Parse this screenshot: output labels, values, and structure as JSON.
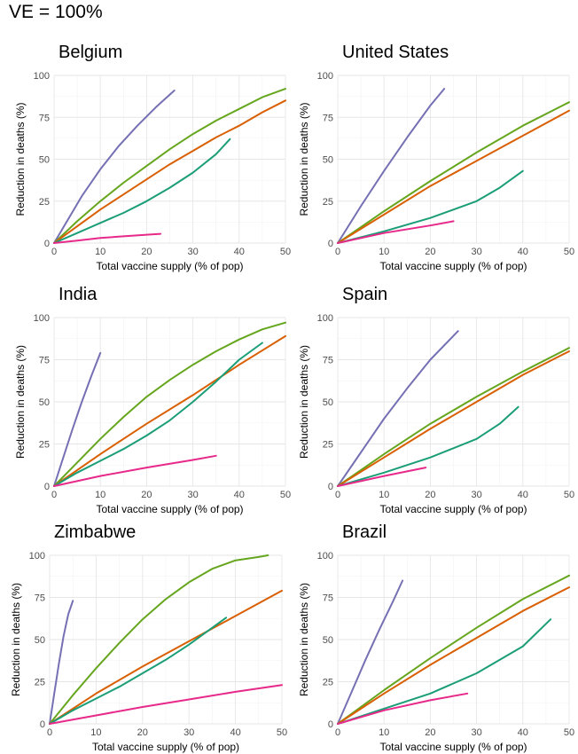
{
  "title": "VE = 100%",
  "colors": {
    "purple": "#7570b3",
    "green": "#66a61e",
    "orange": "#d95f02",
    "teal": "#1b9e77",
    "pink": "#e7298a"
  },
  "chart_data": [
    {
      "type": "line",
      "title": "Belgium",
      "xlabel": "Total vaccine supply (% of pop)",
      "ylabel": "Reduction in deaths (%)",
      "xlim": [
        0,
        50
      ],
      "ylim": [
        0,
        100
      ],
      "xticks": [
        0,
        10,
        20,
        30,
        40,
        50
      ],
      "yticks": [
        0,
        25,
        50,
        75,
        100
      ],
      "series": [
        {
          "color": "purple",
          "x": [
            0,
            3,
            6,
            10,
            14,
            18,
            22,
            26
          ],
          "y": [
            0,
            14,
            28,
            44,
            58,
            70,
            81,
            91
          ]
        },
        {
          "color": "green",
          "x": [
            0,
            5,
            10,
            15,
            20,
            25,
            30,
            35,
            40,
            45,
            50
          ],
          "y": [
            0,
            13,
            25,
            36,
            46,
            56,
            65,
            73,
            80,
            87,
            92
          ]
        },
        {
          "color": "orange",
          "x": [
            0,
            5,
            10,
            15,
            20,
            25,
            30,
            35,
            40,
            45,
            50
          ],
          "y": [
            0,
            10,
            20,
            29,
            38,
            47,
            55,
            63,
            70,
            78,
            85
          ]
        },
        {
          "color": "teal",
          "x": [
            0,
            5,
            10,
            15,
            20,
            25,
            30,
            35,
            38
          ],
          "y": [
            0,
            6,
            12,
            18,
            25,
            33,
            42,
            53,
            62
          ]
        },
        {
          "color": "pink",
          "x": [
            0,
            5,
            10,
            15,
            20,
            23
          ],
          "y": [
            0,
            1.5,
            3,
            4,
            5,
            5.5
          ]
        }
      ]
    },
    {
      "type": "line",
      "title": "United States",
      "xlabel": "Total vaccine supply (% of pop)",
      "ylabel": "Reduction in deaths (%)",
      "xlim": [
        0,
        50
      ],
      "ylim": [
        0,
        100
      ],
      "xticks": [
        0,
        10,
        20,
        30,
        40,
        50
      ],
      "yticks": [
        0,
        25,
        50,
        75,
        100
      ],
      "series": [
        {
          "color": "purple",
          "x": [
            0,
            5,
            10,
            15,
            20,
            23
          ],
          "y": [
            0,
            22,
            43,
            63,
            82,
            92
          ]
        },
        {
          "color": "green",
          "x": [
            0,
            10,
            20,
            30,
            40,
            50
          ],
          "y": [
            0,
            19,
            37,
            54,
            70,
            84
          ]
        },
        {
          "color": "orange",
          "x": [
            0,
            10,
            20,
            30,
            40,
            50
          ],
          "y": [
            0,
            17,
            34,
            49,
            64,
            79
          ]
        },
        {
          "color": "teal",
          "x": [
            0,
            10,
            20,
            30,
            35,
            40
          ],
          "y": [
            0,
            7,
            15,
            25,
            33,
            43
          ]
        },
        {
          "color": "pink",
          "x": [
            0,
            10,
            20,
            25
          ],
          "y": [
            0,
            6,
            10.5,
            13
          ]
        }
      ]
    },
    {
      "type": "line",
      "title": "India",
      "xlabel": "Total vaccine supply (% of pop)",
      "ylabel": "Reduction in deaths (%)",
      "xlim": [
        0,
        50
      ],
      "ylim": [
        0,
        100
      ],
      "xticks": [
        0,
        10,
        20,
        30,
        40,
        50
      ],
      "yticks": [
        0,
        25,
        50,
        75,
        100
      ],
      "series": [
        {
          "color": "purple",
          "x": [
            0,
            2,
            4,
            6,
            8,
            10
          ],
          "y": [
            0,
            17,
            34,
            50,
            65,
            79
          ]
        },
        {
          "color": "green",
          "x": [
            0,
            5,
            10,
            15,
            20,
            25,
            30,
            35,
            40,
            45,
            50
          ],
          "y": [
            0,
            14,
            28,
            41,
            53,
            63,
            72,
            80,
            87,
            93,
            97
          ]
        },
        {
          "color": "orange",
          "x": [
            0,
            10,
            20,
            30,
            40,
            50
          ],
          "y": [
            0,
            19,
            37,
            54,
            72,
            89
          ]
        },
        {
          "color": "teal",
          "x": [
            0,
            5,
            10,
            15,
            20,
            25,
            30,
            35,
            40,
            45
          ],
          "y": [
            0,
            8,
            15,
            22,
            30,
            39,
            50,
            62,
            75,
            85
          ]
        },
        {
          "color": "pink",
          "x": [
            0,
            10,
            20,
            30,
            35
          ],
          "y": [
            0,
            6,
            11,
            15.5,
            18
          ]
        }
      ]
    },
    {
      "type": "line",
      "title": "Spain",
      "xlabel": "Total vaccine supply (% of pop)",
      "ylabel": "Reduction in deaths (%)",
      "xlim": [
        0,
        50
      ],
      "ylim": [
        0,
        100
      ],
      "xticks": [
        0,
        10,
        20,
        30,
        40,
        50
      ],
      "yticks": [
        0,
        25,
        50,
        75,
        100
      ],
      "series": [
        {
          "color": "purple",
          "x": [
            0,
            5,
            10,
            15,
            20,
            26
          ],
          "y": [
            0,
            20,
            40,
            58,
            75,
            92
          ]
        },
        {
          "color": "green",
          "x": [
            0,
            10,
            20,
            30,
            40,
            50
          ],
          "y": [
            0,
            19,
            37,
            53,
            68,
            82
          ]
        },
        {
          "color": "orange",
          "x": [
            0,
            10,
            20,
            30,
            40,
            50
          ],
          "y": [
            0,
            17,
            34,
            50,
            66,
            80
          ]
        },
        {
          "color": "teal",
          "x": [
            0,
            10,
            20,
            30,
            35,
            39
          ],
          "y": [
            0,
            8,
            17,
            28,
            37,
            47
          ]
        },
        {
          "color": "pink",
          "x": [
            0,
            10,
            19
          ],
          "y": [
            0,
            6,
            11
          ]
        }
      ]
    },
    {
      "type": "line",
      "title": "Zimbabwe",
      "xlabel": "Total vaccine supply (% of pop)",
      "ylabel": "Reduction in deaths (%)",
      "xlim": [
        0,
        50
      ],
      "ylim": [
        0,
        100
      ],
      "xticks": [
        0,
        10,
        20,
        30,
        40,
        50
      ],
      "yticks": [
        0,
        25,
        50,
        75,
        100
      ],
      "series": [
        {
          "color": "purple",
          "x": [
            0,
            1,
            2,
            3,
            4,
            5
          ],
          "y": [
            0,
            18,
            36,
            52,
            65,
            73
          ]
        },
        {
          "color": "green",
          "x": [
            0,
            5,
            10,
            15,
            20,
            25,
            30,
            35,
            40,
            45,
            47
          ],
          "y": [
            0,
            17,
            33,
            48,
            62,
            74,
            84,
            92,
            97,
            99,
            100
          ]
        },
        {
          "color": "orange",
          "x": [
            0,
            10,
            20,
            30,
            40,
            50
          ],
          "y": [
            0,
            18,
            34,
            49,
            64,
            79
          ]
        },
        {
          "color": "teal",
          "x": [
            0,
            5,
            10,
            15,
            20,
            25,
            30,
            35,
            38
          ],
          "y": [
            0,
            8,
            15,
            22,
            30,
            38,
            47,
            57,
            63
          ]
        },
        {
          "color": "pink",
          "x": [
            0,
            10,
            20,
            30,
            40,
            50
          ],
          "y": [
            0,
            5,
            10,
            14.5,
            19,
            23
          ]
        }
      ]
    },
    {
      "type": "line",
      "title": "Brazil",
      "xlabel": "Total vaccine supply (% of pop)",
      "ylabel": "Reduction in deaths (%)",
      "xlim": [
        0,
        50
      ],
      "ylim": [
        0,
        100
      ],
      "xticks": [
        0,
        10,
        20,
        30,
        40,
        50
      ],
      "yticks": [
        0,
        25,
        50,
        75,
        100
      ],
      "series": [
        {
          "color": "purple",
          "x": [
            0,
            3,
            6,
            9,
            12,
            14
          ],
          "y": [
            0,
            19,
            38,
            56,
            73,
            85
          ]
        },
        {
          "color": "green",
          "x": [
            0,
            10,
            20,
            30,
            40,
            50
          ],
          "y": [
            0,
            20,
            39,
            57,
            74,
            88
          ]
        },
        {
          "color": "orange",
          "x": [
            0,
            10,
            20,
            30,
            40,
            50
          ],
          "y": [
            0,
            18,
            35,
            51,
            67,
            81
          ]
        },
        {
          "color": "teal",
          "x": [
            0,
            10,
            20,
            30,
            40,
            46
          ],
          "y": [
            0,
            9,
            18,
            30,
            46,
            62
          ]
        },
        {
          "color": "pink",
          "x": [
            0,
            10,
            20,
            28
          ],
          "y": [
            0,
            8,
            14,
            18
          ]
        }
      ]
    }
  ]
}
